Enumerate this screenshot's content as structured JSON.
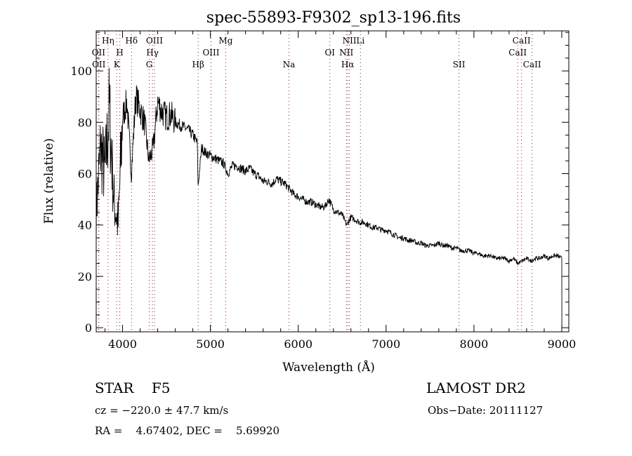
{
  "chart_data": {
    "type": "line",
    "title": "spec-55893-F9302_sp13-196.fits",
    "xlabel": "Wavelength (Å)",
    "ylabel": "Flux (relative)",
    "xlim": [
      3700,
      9080
    ],
    "ylim": [
      -1.6,
      115.6
    ],
    "xticks": [
      4000,
      5000,
      6000,
      7000,
      8000,
      9000
    ],
    "yticks": [
      0,
      20,
      40,
      60,
      80,
      100
    ],
    "grid": false,
    "series": [
      {
        "name": "spectrum",
        "x": [
          3700,
          3750,
          3800,
          3850,
          3900,
          3950,
          4000,
          4050,
          4100,
          4150,
          4200,
          4250,
          4300,
          4350,
          4400,
          4450,
          4500,
          4550,
          4600,
          4650,
          4700,
          4750,
          4800,
          4850,
          4860,
          4900,
          4950,
          5000,
          5050,
          5100,
          5150,
          5200,
          5250,
          5300,
          5350,
          5400,
          5450,
          5500,
          5550,
          5600,
          5650,
          5700,
          5750,
          5800,
          5850,
          5900,
          5950,
          6000,
          6050,
          6100,
          6150,
          6200,
          6250,
          6300,
          6350,
          6400,
          6450,
          6500,
          6550,
          6600,
          6650,
          6700,
          6750,
          6800,
          6850,
          6900,
          6950,
          7000,
          7050,
          7100,
          7150,
          7200,
          7250,
          7300,
          7350,
          7400,
          7450,
          7500,
          7550,
          7600,
          7650,
          7700,
          7750,
          7800,
          7850,
          7900,
          7950,
          8000,
          8050,
          8100,
          8150,
          8200,
          8250,
          8300,
          8350,
          8400,
          8450,
          8500,
          8550,
          8600,
          8650,
          8700,
          8750,
          8800,
          8850,
          8900,
          8950,
          9000,
          9001
        ],
        "y": [
          45,
          70,
          60,
          85,
          50,
          40,
          82,
          88,
          60,
          90,
          85,
          80,
          65,
          70,
          88,
          84,
          82,
          83,
          80,
          79,
          78,
          77,
          75,
          72,
          55,
          70,
          68,
          67,
          66,
          65,
          64,
          60,
          63,
          63,
          62,
          61,
          62,
          60,
          59,
          57,
          57,
          56,
          58,
          57,
          56,
          54,
          52,
          51,
          50,
          49,
          49,
          48,
          47,
          47,
          50,
          46,
          45,
          44,
          40,
          43,
          42,
          41,
          41,
          40,
          39,
          39,
          38,
          38,
          37,
          36,
          35,
          35,
          34,
          34,
          33,
          33,
          32,
          32,
          32,
          33,
          32,
          32,
          31,
          31,
          30,
          30,
          30,
          29,
          29,
          28,
          28,
          28,
          27,
          27,
          27,
          26,
          27,
          25,
          26,
          27,
          26,
          27,
          27,
          28,
          27,
          28,
          28,
          27,
          0
        ]
      }
    ],
    "lines": [
      {
        "label": "Hη",
        "wave": 3835,
        "row": 0
      },
      {
        "label": "Hδ",
        "wave": 4102,
        "row": 0
      },
      {
        "label": "OIII",
        "wave": 4363,
        "row": 0
      },
      {
        "label": "Mg",
        "wave": 5175,
        "row": 0
      },
      {
        "label": "NII",
        "wave": 6583,
        "row": 0
      },
      {
        "label": "Li",
        "wave": 6708,
        "row": 0
      },
      {
        "label": "CaII",
        "wave": 8542,
        "row": 0
      },
      {
        "label": "OII",
        "wave": 3727,
        "row": 1
      },
      {
        "label": "H",
        "wave": 3969,
        "row": 1
      },
      {
        "label": "Hγ",
        "wave": 4340,
        "row": 1
      },
      {
        "label": "OIII",
        "wave": 5007,
        "row": 1
      },
      {
        "label": "OI",
        "wave": 6360,
        "row": 1
      },
      {
        "label": "NII",
        "wave": 6548,
        "row": 1
      },
      {
        "label": "CaII",
        "wave": 8498,
        "row": 1
      },
      {
        "label": "OII",
        "wave": 3730,
        "row": 2
      },
      {
        "label": "K",
        "wave": 3934,
        "row": 2
      },
      {
        "label": "G",
        "wave": 4304,
        "row": 2
      },
      {
        "label": "Hβ",
        "wave": 4861,
        "row": 2
      },
      {
        "label": "Na",
        "wave": 5894,
        "row": 2
      },
      {
        "label": "Hα",
        "wave": 6563,
        "row": 2
      },
      {
        "label": "SII",
        "wave": 7830,
        "row": 2
      },
      {
        "label": "CaII",
        "wave": 8662,
        "row": 2
      }
    ]
  },
  "info": {
    "object": "STAR    F5",
    "survey": "LAMOST DR2",
    "cz": "cz = −220.0 ± 47.7 km/s",
    "obs_date": "Obs−Date: 20111127",
    "coords": "RA =    4.67402, DEC =    5.69920"
  }
}
